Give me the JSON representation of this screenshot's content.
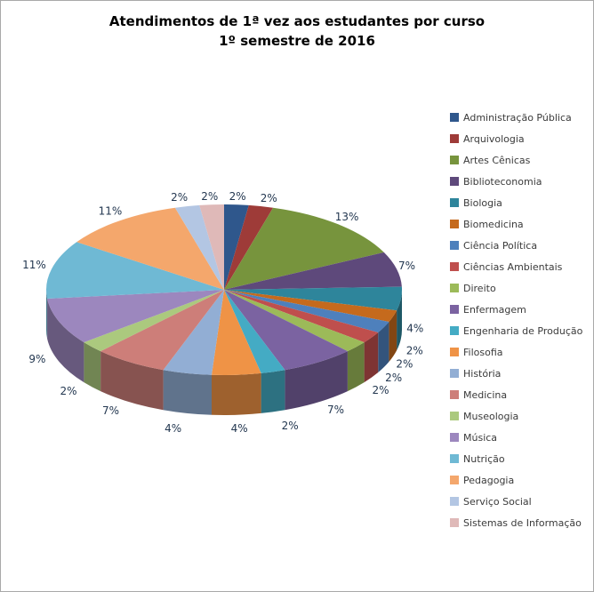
{
  "window": {
    "background_color": "#ffffff",
    "border_color": "#a9a9a9"
  },
  "chart_data": {
    "type": "pie",
    "is_3d": true,
    "title": "Atendimentos de 1ª vez aos estudantes por curso",
    "subtitle": "1º semestre de 2016",
    "legend_position": "right",
    "data_labels": "percent-outside",
    "label_color": "#233750",
    "total_value": 45,
    "slices": [
      {
        "label": "Administração Pública",
        "value": 1,
        "percent_label": "2%",
        "color": "#2F578C"
      },
      {
        "label": "Arquivologia",
        "value": 1,
        "percent_label": "2%",
        "color": "#9E3B38"
      },
      {
        "label": "Artes Cênicas",
        "value": 6,
        "percent_label": "13%",
        "color": "#77943D"
      },
      {
        "label": "Biblioteconomia",
        "value": 3,
        "percent_label": "7%",
        "color": "#5E497B"
      },
      {
        "label": "Biologia",
        "value": 2,
        "percent_label": "4%",
        "color": "#2E859B"
      },
      {
        "label": "Biomedicina",
        "value": 1,
        "percent_label": "2%",
        "color": "#C56A1D"
      },
      {
        "label": "Ciência Política",
        "value": 1,
        "percent_label": "2%",
        "color": "#4E80BC"
      },
      {
        "label": "Ciências Ambientais",
        "value": 1,
        "percent_label": "2%",
        "color": "#BF4F4D"
      },
      {
        "label": "Direito",
        "value": 1,
        "percent_label": "2%",
        "color": "#9CBA59"
      },
      {
        "label": "Enfermagem",
        "value": 3,
        "percent_label": "7%",
        "color": "#7B63A1"
      },
      {
        "label": "Engenharia de Produção",
        "value": 1,
        "percent_label": "2%",
        "color": "#44ABC4"
      },
      {
        "label": "Filosofia",
        "value": 2,
        "percent_label": "4%",
        "color": "#EF9346"
      },
      {
        "label": "História",
        "value": 2,
        "percent_label": "4%",
        "color": "#92AED4"
      },
      {
        "label": "Medicina",
        "value": 3,
        "percent_label": "7%",
        "color": "#CD7E79"
      },
      {
        "label": "Museologia",
        "value": 1,
        "percent_label": "2%",
        "color": "#ABC97E"
      },
      {
        "label": "Música",
        "value": 4,
        "percent_label": "9%",
        "color": "#9C87BE"
      },
      {
        "label": "Nutrição",
        "value": 5,
        "percent_label": "11%",
        "color": "#6FB9D4"
      },
      {
        "label": "Pedagogia",
        "value": 5,
        "percent_label": "11%",
        "color": "#F4A76C"
      },
      {
        "label": "Serviço Social",
        "value": 1,
        "percent_label": "2%",
        "color": "#B3C6E3"
      },
      {
        "label": "Sistemas de Informação",
        "value": 1,
        "percent_label": "2%",
        "color": "#DFB9B8"
      }
    ],
    "start_angle_deg": -90,
    "direction": "clockwise"
  }
}
